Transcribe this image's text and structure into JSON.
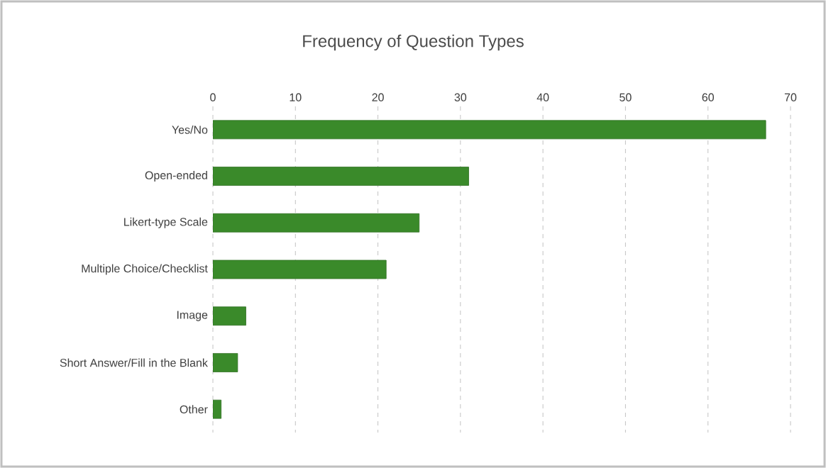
{
  "chart_data": {
    "type": "bar",
    "orientation": "horizontal",
    "title": "Frequency of Question Types",
    "categories": [
      "Yes/No",
      "Open-ended",
      "Likert-type Scale",
      "Multiple Choice/Checklist",
      "Image",
      "Short Answer/Fill in the Blank",
      "Other"
    ],
    "values": [
      67,
      31,
      25,
      21,
      4,
      3,
      1
    ],
    "color": "#3a8a2a",
    "xlim": [
      0,
      70
    ],
    "xticks": [
      0,
      10,
      20,
      30,
      40,
      50,
      60,
      70
    ],
    "grid": "x"
  }
}
